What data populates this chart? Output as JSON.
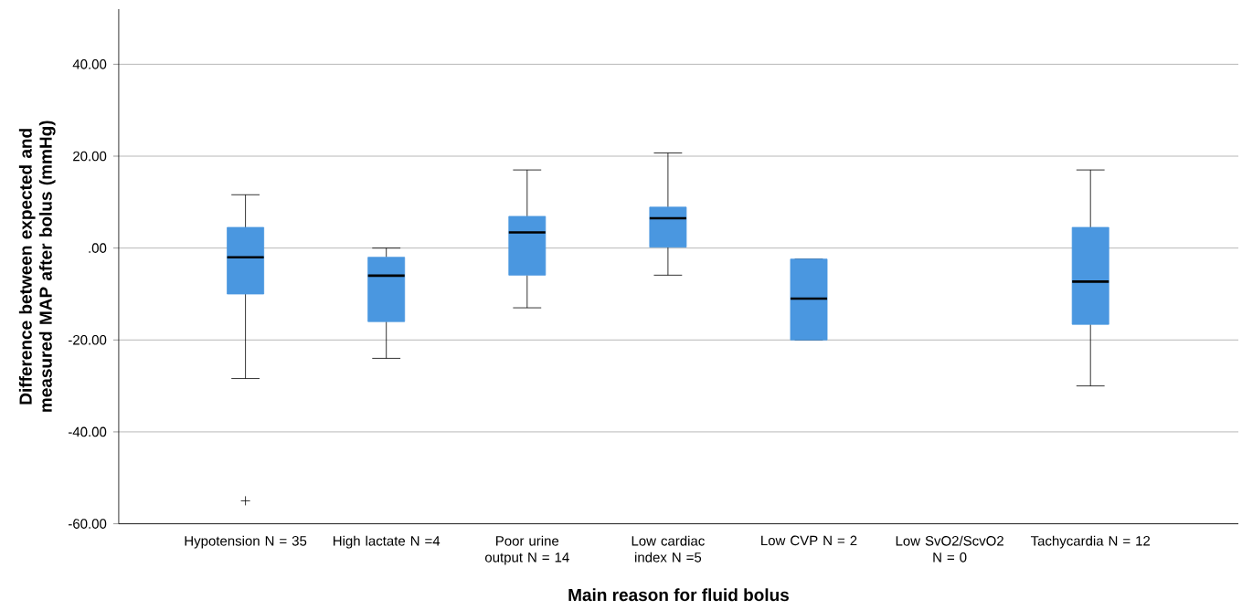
{
  "chart_data": {
    "type": "box",
    "xlabel": "Main reason for fluid bolus",
    "ylabel": "Difference between expected and measured MAP after bolus (mmHg)",
    "categories": [
      "Hypotension N = 35",
      "High lactate N =4",
      "Poor urine output N = 14",
      "Low cardiac index N =5",
      "Low CVP N = 2",
      "Low SvO2/ScvO2 N = 0",
      "Tachycardia N = 12"
    ],
    "boxes": [
      {
        "low": -28.4,
        "q1": -10,
        "median": -2,
        "q3": 4.5,
        "high": 11.6,
        "outliers": [
          -55
        ]
      },
      {
        "low": -24,
        "q1": -16,
        "median": -6,
        "q3": -2,
        "high": 0
      },
      {
        "low": -13,
        "q1": -5.9,
        "median": 3.4,
        "q3": 6.9,
        "high": 17
      },
      {
        "low": -5.9,
        "q1": 0.2,
        "median": 6.5,
        "q3": 8.9,
        "high": 20.7
      },
      {
        "low": -20,
        "q1": -20,
        "median": -11,
        "q3": -2.4,
        "high": -2.4
      },
      null,
      {
        "low": -30,
        "q1": -16.6,
        "median": -7.3,
        "q3": 4.5,
        "high": 17
      }
    ],
    "color": "#4a97e0",
    "ylim": [
      -60,
      52
    ],
    "yticks": [
      {
        "value": -60,
        "label": "-60.00"
      },
      {
        "value": -40,
        "label": "-40.00"
      },
      {
        "value": -20,
        "label": "-20.00"
      },
      {
        "value": 0,
        "label": ".00"
      },
      {
        "value": 20,
        "label": "20.00"
      },
      {
        "value": 40,
        "label": "40.00"
      }
    ],
    "grid": "y"
  }
}
